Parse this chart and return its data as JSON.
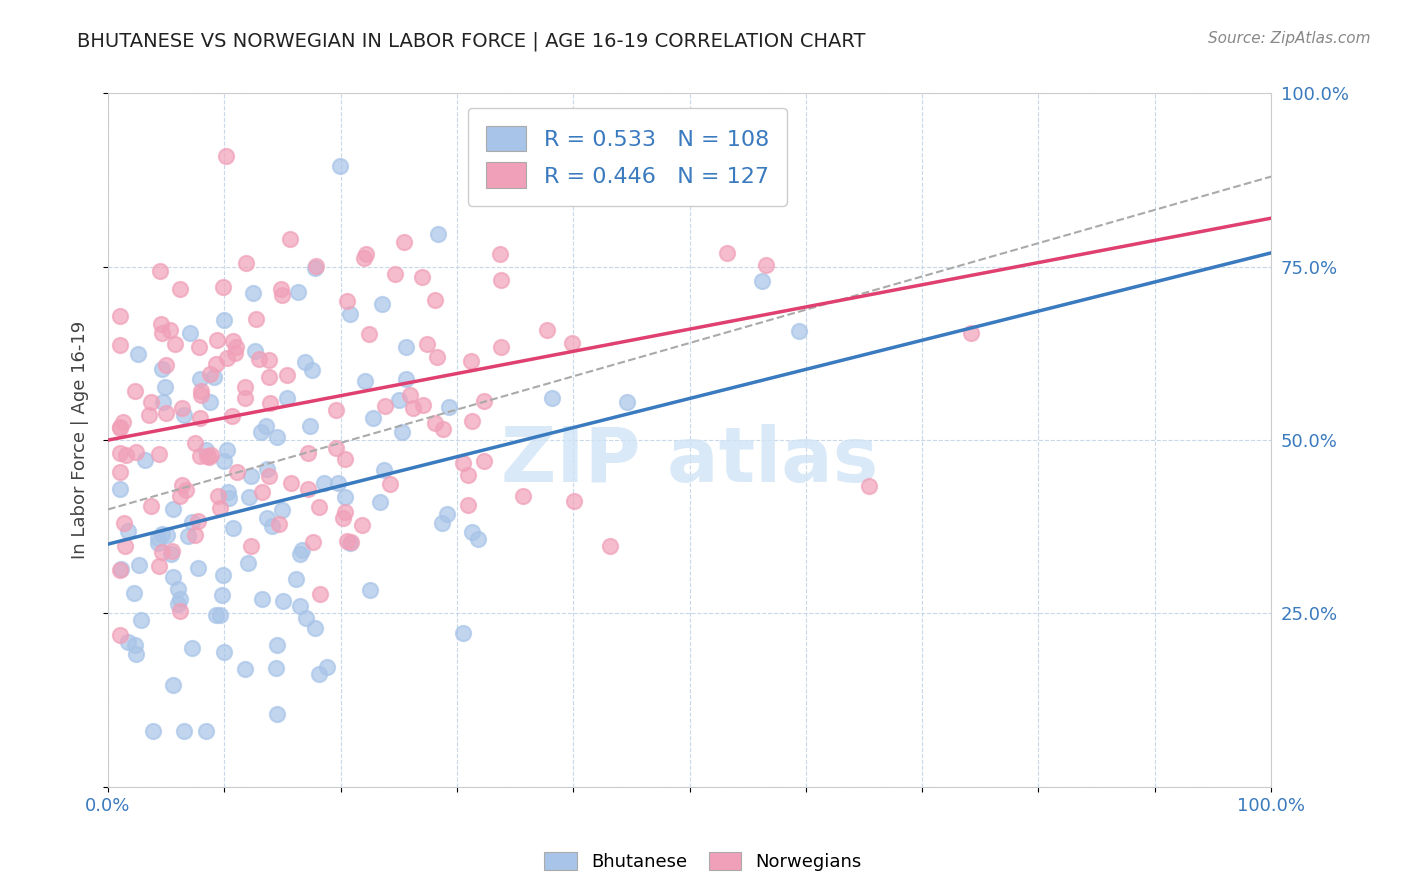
{
  "title": "BHUTANESE VS NORWEGIAN IN LABOR FORCE | AGE 16-19 CORRELATION CHART",
  "source": "Source: ZipAtlas.com",
  "ylabel": "In Labor Force | Age 16-19",
  "xlim": [
    0.0,
    1.0
  ],
  "ylim": [
    0.0,
    1.0
  ],
  "xticks": [
    0.0,
    0.1,
    0.2,
    0.3,
    0.4,
    0.5,
    0.6,
    0.7,
    0.8,
    0.9,
    1.0
  ],
  "yticks": [
    0.0,
    0.25,
    0.5,
    0.75,
    1.0
  ],
  "xticklabels": [
    "0.0%",
    "",
    "",
    "",
    "",
    "",
    "",
    "",
    "",
    "",
    "100.0%"
  ],
  "yticklabels_right": [
    "",
    "25.0%",
    "50.0%",
    "75.0%",
    "100.0%"
  ],
  "blue_R": 0.533,
  "blue_N": 108,
  "pink_R": 0.446,
  "pink_N": 127,
  "blue_color": "#a8c4e8",
  "pink_color": "#f0a0b8",
  "blue_line_color": "#3a7abf",
  "pink_line_color": "#e04070",
  "background_color": "#ffffff",
  "grid_color": "#c8d8e8",
  "blue_seed": 42,
  "pink_seed": 7,
  "legend_color": "#3a7abf",
  "blue_line_intercept": 0.35,
  "blue_line_slope": 0.42,
  "pink_line_intercept": 0.5,
  "pink_line_slope": 0.32,
  "gray_dash_intercept": 0.4,
  "gray_dash_slope": 0.48
}
